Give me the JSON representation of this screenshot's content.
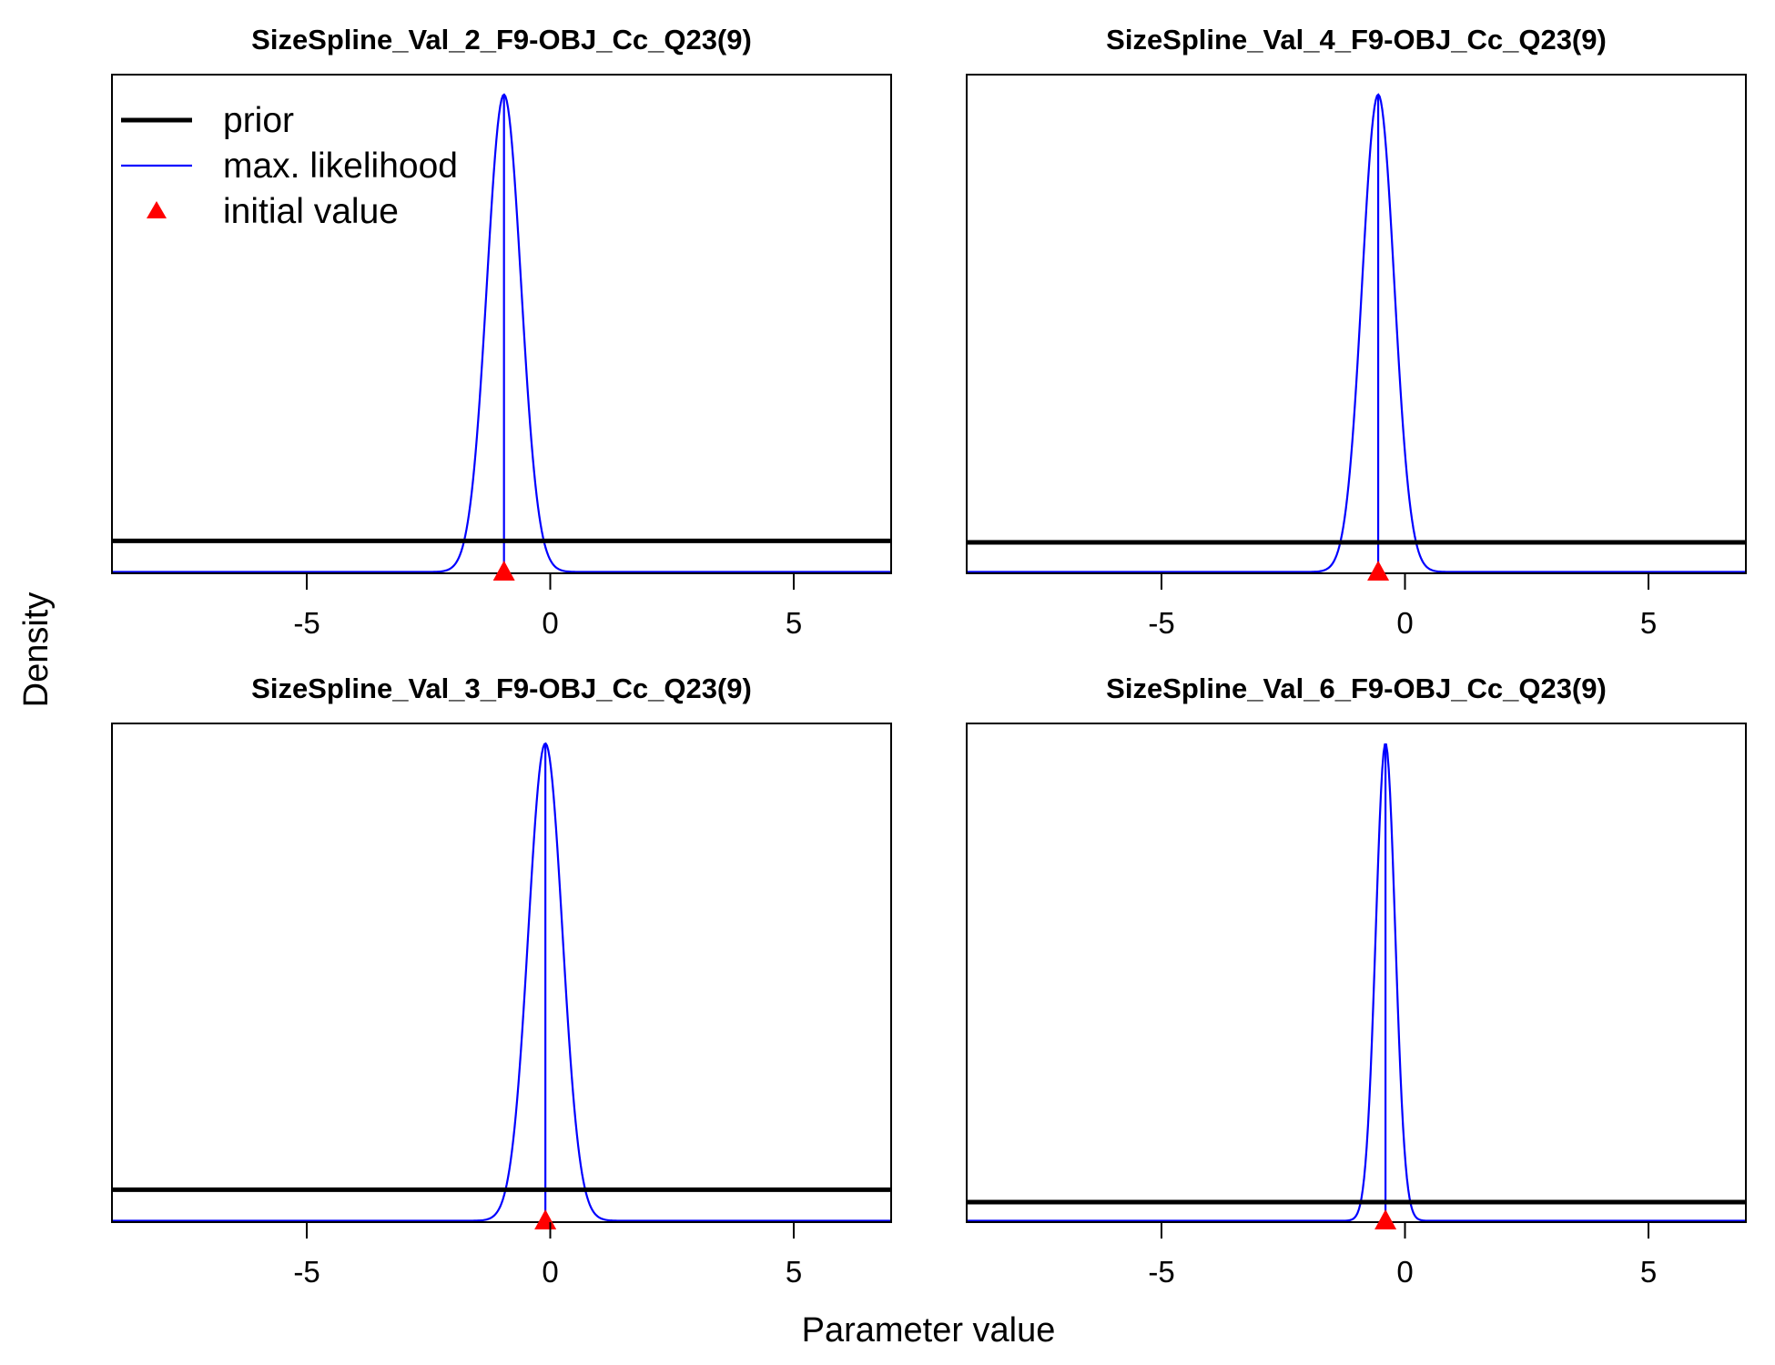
{
  "figure": {
    "xlabel": "Parameter value",
    "ylabel": "Density",
    "colors": {
      "prior": "#000000",
      "max_likelihood": "#0000ff",
      "initial_value": "#ff0000",
      "frame": "#000000"
    }
  },
  "legend": {
    "placement": "top-left of first panel",
    "items": [
      {
        "label": "prior",
        "style": "thick-black-line"
      },
      {
        "label": "max. likelihood",
        "style": "thin-blue-line"
      },
      {
        "label": "initial value",
        "style": "red-triangle"
      }
    ]
  },
  "chart_data": [
    {
      "type": "line",
      "title": "SizeSpline_Val_2_F9-OBJ_Cc_Q23(9)",
      "xlim": [
        -9,
        7
      ],
      "xticks": [
        -5,
        0,
        5
      ],
      "xtick_labels": [
        "-5",
        "0",
        "5"
      ],
      "y_ticks_shown": false,
      "max_likelihood": {
        "estimate": -0.95,
        "sd": 0.35
      },
      "prior": {
        "shape": "uniform",
        "relative_density": 0.065
      },
      "initial_value": -0.95
    },
    {
      "type": "line",
      "title": "SizeSpline_Val_4_F9-OBJ_Cc_Q23(9)",
      "xlim": [
        -9,
        7
      ],
      "xticks": [
        -5,
        0,
        5
      ],
      "xtick_labels": [
        "-5",
        "0",
        "5"
      ],
      "y_ticks_shown": false,
      "max_likelihood": {
        "estimate": -0.55,
        "sd": 0.33
      },
      "prior": {
        "shape": "uniform",
        "relative_density": 0.062
      },
      "initial_value": -0.55
    },
    {
      "type": "line",
      "title": "SizeSpline_Val_3_F9-OBJ_Cc_Q23(9)",
      "xlim": [
        -9,
        7
      ],
      "xticks": [
        -5,
        0,
        5
      ],
      "xtick_labels": [
        "-5",
        "0",
        "5"
      ],
      "y_ticks_shown": false,
      "max_likelihood": {
        "estimate": -0.1,
        "sd": 0.35
      },
      "prior": {
        "shape": "uniform",
        "relative_density": 0.065
      },
      "initial_value": -0.1
    },
    {
      "type": "line",
      "title": "SizeSpline_Val_6_F9-OBJ_Cc_Q23(9)",
      "xlim": [
        -9,
        7
      ],
      "xticks": [
        -5,
        0,
        5
      ],
      "xtick_labels": [
        "-5",
        "0",
        "5"
      ],
      "y_ticks_shown": false,
      "max_likelihood": {
        "estimate": -0.4,
        "sd": 0.2
      },
      "prior": {
        "shape": "uniform",
        "relative_density": 0.039
      },
      "initial_value": -0.4
    }
  ]
}
